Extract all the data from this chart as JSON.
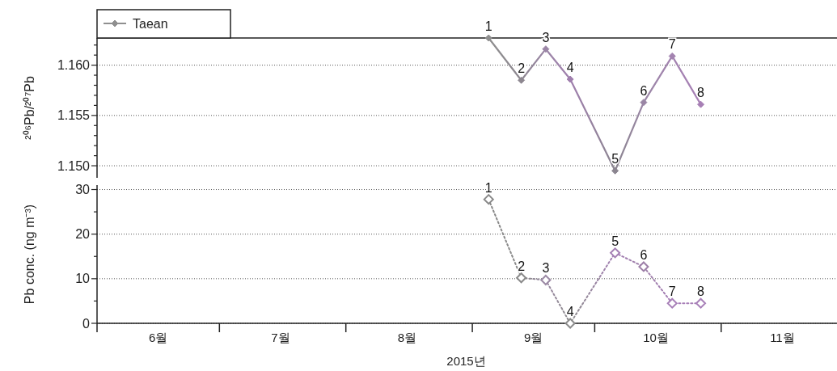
{
  "chart_data": [
    {
      "type": "line",
      "ylabel": "²⁰⁶Pb/²⁰⁷Pb",
      "xlim": [
        "2015-06-01",
        "2015-11-29"
      ],
      "ylim": [
        1.1488,
        1.1627
      ],
      "yticks": [
        {
          "value": 1.15,
          "label": "1.150"
        },
        {
          "value": 1.151,
          "label": null
        },
        {
          "value": 1.152,
          "label": null
        },
        {
          "value": 1.153,
          "label": null
        },
        {
          "value": 1.154,
          "label": null
        },
        {
          "value": 1.155,
          "label": "1.155"
        },
        {
          "value": 1.156,
          "label": null
        },
        {
          "value": 1.157,
          "label": null
        },
        {
          "value": 1.158,
          "label": null
        },
        {
          "value": 1.159,
          "label": null
        },
        {
          "value": 1.16,
          "label": "1.160"
        },
        {
          "value": 1.161,
          "label": null
        },
        {
          "value": 1.162,
          "label": null
        }
      ],
      "tick_labels": "y",
      "grid": "y",
      "legend": "top left",
      "marker": "diamond",
      "line_style": "solid",
      "x": [
        "2015-09-05",
        "2015-09-13",
        "2015-09-19",
        "2015-09-25",
        "2015-10-06",
        "2015-10-13",
        "2015-10-20",
        "2015-10-27"
      ],
      "series": [
        {
          "name": "Taean",
          "colors": [
            "#8f8f8f",
            "#8d8790",
            "#9b85a6",
            "#a07fae",
            "#8b8590",
            "#9a86a5",
            "#a383b0",
            "#a77fb5"
          ],
          "values": [
            1.1627,
            1.1585,
            1.1616,
            1.1586,
            1.1495,
            1.1563,
            1.1609,
            1.1561
          ]
        }
      ],
      "annotations": [
        {
          "text": "1",
          "x": "2015-09-05",
          "y": 1.1627
        },
        {
          "text": "2",
          "x": "2015-09-13",
          "y": 1.1585
        },
        {
          "text": "3",
          "x": "2015-09-19",
          "y": 1.1616
        },
        {
          "text": "4",
          "x": "2015-09-25",
          "y": 1.1586
        },
        {
          "text": "5",
          "x": "2015-10-06",
          "y": 1.1495
        },
        {
          "text": "6",
          "x": "2015-10-13",
          "y": 1.1563
        },
        {
          "text": "7",
          "x": "2015-10-20",
          "y": 1.1609
        },
        {
          "text": "8",
          "x": "2015-10-27",
          "y": 1.1561
        }
      ]
    },
    {
      "type": "line",
      "ylabel": "Pb conc. (ng m⁻³)",
      "xlabel": "2015년",
      "xlim": [
        "2015-06-01",
        "2015-11-29"
      ],
      "ylim": [
        0,
        31
      ],
      "xticks": [
        {
          "value": "2015-06-01",
          "label": null
        },
        {
          "value": "2015-06-16",
          "label": "6월"
        },
        {
          "value": "2015-07-01",
          "label": null
        },
        {
          "value": "2015-07-16",
          "label": "7월"
        },
        {
          "value": "2015-08-01",
          "label": null
        },
        {
          "value": "2015-08-16",
          "label": "8월"
        },
        {
          "value": "2015-09-01",
          "label": null
        },
        {
          "value": "2015-09-16",
          "label": "9월"
        },
        {
          "value": "2015-10-01",
          "label": null
        },
        {
          "value": "2015-10-16",
          "label": "10월"
        },
        {
          "value": "2015-11-01",
          "label": null
        },
        {
          "value": "2015-11-16",
          "label": "11월"
        }
      ],
      "yticks": [
        0,
        {
          "value": 5,
          "label": null
        },
        10,
        {
          "value": 15,
          "label": null
        },
        20,
        {
          "value": 25,
          "label": null
        },
        30
      ],
      "grid": "y",
      "marker": "diamond",
      "line_style": "dotted",
      "x": [
        "2015-09-05",
        "2015-09-13",
        "2015-09-19",
        "2015-09-25",
        "2015-10-06",
        "2015-10-13",
        "2015-10-20",
        "2015-10-27"
      ],
      "series": [
        {
          "colors": [
            "#888888",
            "#8a8a8a",
            "#9c8aa5",
            "#8c8c8c",
            "#a47fb4",
            "#9d7fa8",
            "#a880b8",
            "#a880b8"
          ],
          "values": [
            27.8,
            10.2,
            9.7,
            0,
            15.8,
            12.7,
            4.5,
            4.5
          ]
        }
      ],
      "annotations": [
        {
          "text": "1",
          "x": "2015-09-05",
          "y": 27.8
        },
        {
          "text": "2",
          "x": "2015-09-13",
          "y": 10.2
        },
        {
          "text": "3",
          "x": "2015-09-19",
          "y": 9.7
        },
        {
          "text": "4",
          "x": "2015-09-25",
          "y": 0
        },
        {
          "text": "5",
          "x": "2015-10-06",
          "y": 15.8
        },
        {
          "text": "6",
          "x": "2015-10-13",
          "y": 12.7
        },
        {
          "text": "7",
          "x": "2015-10-20",
          "y": 4.5
        },
        {
          "text": "8",
          "x": "2015-10-27",
          "y": 4.5
        }
      ]
    }
  ]
}
